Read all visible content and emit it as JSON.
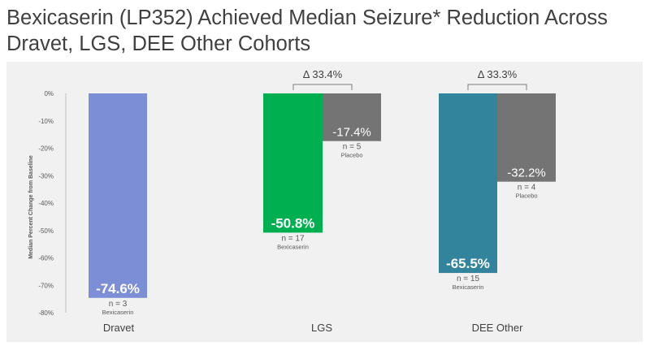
{
  "title": "Bexicaserin (LP352) Achieved Median Seizure* Reduction Across Dravet, LGS, DEE Other Cohorts",
  "chart_data": {
    "type": "bar",
    "title": "Bexicaserin (LP352) Achieved Median Seizure* Reduction Across Dravet, LGS, DEE Other Cohorts",
    "xlabel": "",
    "ylabel": "Median Percent Change from Baseline",
    "ylim": [
      -80,
      0
    ],
    "yticks": [
      "0%",
      "-10%",
      "-20%",
      "-30%",
      "-40%",
      "-50%",
      "-60%",
      "-70%",
      "-80%"
    ],
    "categories": [
      "Dravet",
      "LGS",
      "DEE Other"
    ],
    "bars": [
      {
        "group": "Dravet",
        "series": "Bexicaserin",
        "value": -74.6,
        "label": "-74.6%",
        "n": "n = 3",
        "name": "Bexicaserin",
        "color": "#7b8ed6"
      },
      {
        "group": "LGS",
        "series": "Bexicaserin",
        "value": -50.8,
        "label": "-50.8%",
        "n": "n = 17",
        "name": "Bexicaserin",
        "color": "#00b050"
      },
      {
        "group": "LGS",
        "series": "Placebo",
        "value": -17.4,
        "label": "-17.4%",
        "n": "n = 5",
        "name": "Placebo",
        "color": "#747474"
      },
      {
        "group": "DEE Other",
        "series": "Bexicaserin",
        "value": -65.5,
        "label": "-65.5%",
        "n": "n = 15",
        "name": "Bexicaserin",
        "color": "#31849b"
      },
      {
        "group": "DEE Other",
        "series": "Placebo",
        "value": -32.2,
        "label": "-32.2%",
        "n": "n = 4",
        "name": "Placebo",
        "color": "#747474"
      }
    ],
    "annotations": [
      {
        "group": "LGS",
        "text": "Δ 33.4%"
      },
      {
        "group": "DEE Other",
        "text": "Δ 33.3%"
      }
    ]
  }
}
